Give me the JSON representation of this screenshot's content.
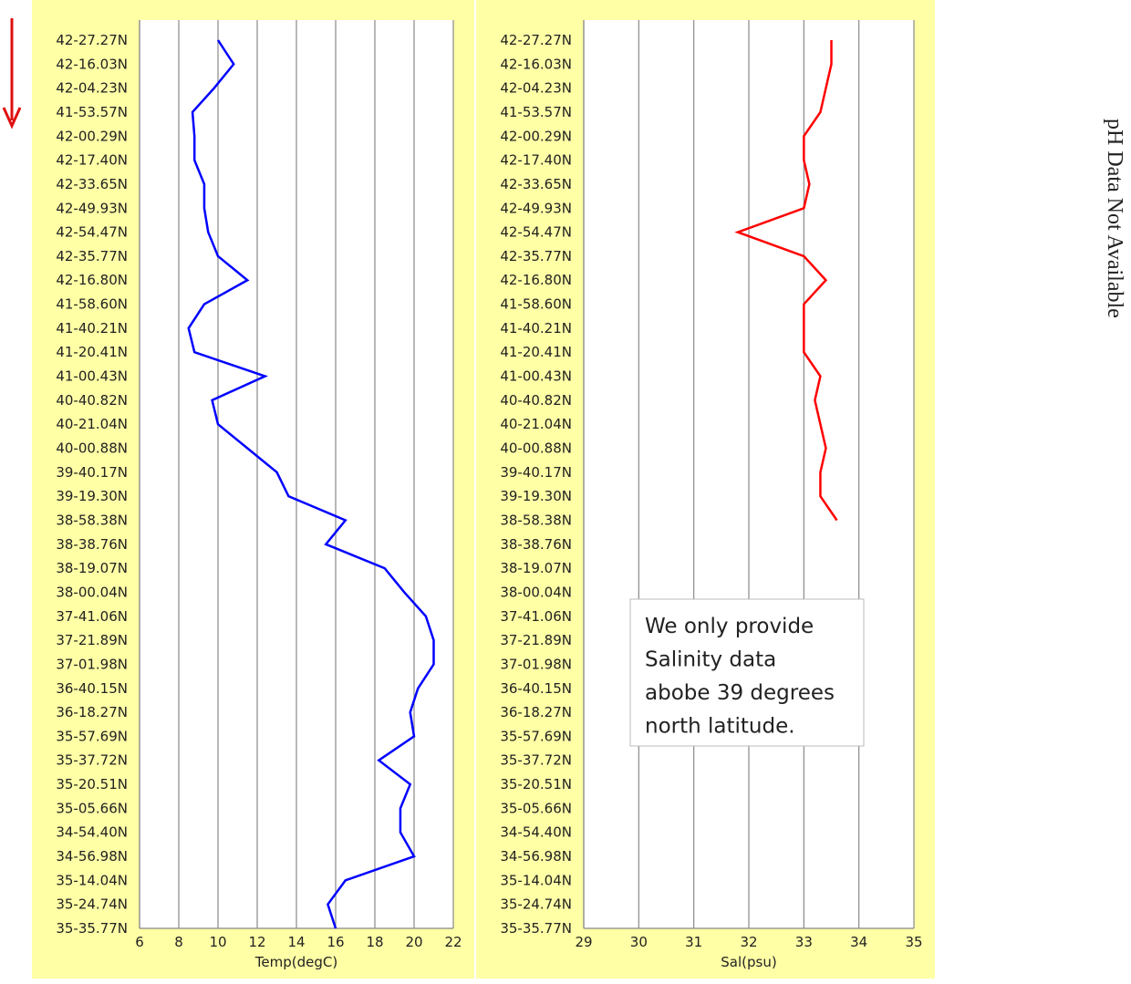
{
  "chart_data": [
    {
      "type": "line",
      "orientation": "horizontal",
      "xlabel": "Temp(degC)",
      "categories": [
        "42-27.27N",
        "42-16.03N",
        "42-04.23N",
        "41-53.57N",
        "42-00.29N",
        "42-17.40N",
        "42-33.65N",
        "42-49.93N",
        "42-54.47N",
        "42-35.77N",
        "42-16.80N",
        "41-58.60N",
        "41-40.21N",
        "41-20.41N",
        "41-00.43N",
        "40-40.82N",
        "40-21.04N",
        "40-00.88N",
        "39-40.17N",
        "39-19.30N",
        "38-58.38N",
        "38-38.76N",
        "38-19.07N",
        "38-00.04N",
        "37-41.06N",
        "37-21.89N",
        "37-01.98N",
        "36-40.15N",
        "36-18.27N",
        "35-57.69N",
        "35-37.72N",
        "35-20.51N",
        "35-05.66N",
        "34-54.40N",
        "34-56.98N",
        "35-14.04N",
        "35-24.74N",
        "35-35.77N"
      ],
      "series": [
        {
          "name": "Temp",
          "color": "#0000ff",
          "values": [
            10.0,
            10.8,
            9.8,
            8.7,
            8.8,
            8.8,
            9.3,
            9.3,
            9.5,
            10.0,
            11.5,
            9.3,
            8.5,
            8.8,
            12.4,
            9.7,
            10.0,
            11.5,
            13.0,
            13.6,
            16.5,
            15.5,
            18.5,
            19.5,
            20.6,
            21.0,
            21.0,
            20.2,
            19.8,
            20.0,
            18.2,
            19.8,
            19.3,
            19.3,
            20.0,
            16.5,
            15.6,
            16.0
          ]
        }
      ],
      "xlim": [
        6,
        22
      ],
      "xticks": [
        6,
        8,
        10,
        12,
        14,
        16,
        18,
        20,
        22
      ],
      "grid": true
    },
    {
      "type": "line",
      "orientation": "horizontal",
      "xlabel": "Sal(psu)",
      "categories": [
        "42-27.27N",
        "42-16.03N",
        "42-04.23N",
        "41-53.57N",
        "42-00.29N",
        "42-17.40N",
        "42-33.65N",
        "42-49.93N",
        "42-54.47N",
        "42-35.77N",
        "42-16.80N",
        "41-58.60N",
        "41-40.21N",
        "41-20.41N",
        "41-00.43N",
        "40-40.82N",
        "40-21.04N",
        "40-00.88N",
        "39-40.17N",
        "39-19.30N",
        "38-58.38N",
        "38-38.76N",
        "38-19.07N",
        "38-00.04N",
        "37-41.06N",
        "37-21.89N",
        "37-01.98N",
        "36-40.15N",
        "36-18.27N",
        "35-57.69N",
        "35-37.72N",
        "35-20.51N",
        "35-05.66N",
        "34-54.40N",
        "34-56.98N",
        "35-14.04N",
        "35-24.74N",
        "35-35.77N"
      ],
      "series": [
        {
          "name": "Sal",
          "color": "#ff0000",
          "values": [
            33.5,
            33.5,
            33.4,
            33.3,
            33.0,
            33.0,
            33.1,
            33.0,
            31.8,
            33.0,
            33.4,
            33.0,
            33.0,
            33.0,
            33.3,
            33.2,
            33.3,
            33.4,
            33.3,
            33.3,
            33.6,
            null,
            null,
            null,
            null,
            null,
            null,
            null,
            null,
            null,
            null,
            null,
            null,
            null,
            null,
            null,
            null,
            null
          ]
        }
      ],
      "xlim": [
        29,
        35
      ],
      "xticks": [
        29,
        30,
        31,
        32,
        33,
        34,
        35
      ],
      "grid": true,
      "annotation": [
        "We only provide",
        "Salinity data",
        "abobe 39 degrees",
        "north latitude."
      ]
    }
  ],
  "note": "pH Data Not Available"
}
